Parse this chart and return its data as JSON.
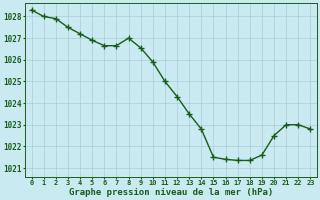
{
  "x": [
    0,
    1,
    2,
    3,
    4,
    5,
    6,
    7,
    8,
    9,
    10,
    11,
    12,
    13,
    14,
    15,
    16,
    17,
    18,
    19,
    20,
    21,
    22,
    23
  ],
  "y": [
    1028.3,
    1028.0,
    1027.9,
    1027.5,
    1027.2,
    1026.9,
    1026.65,
    1026.65,
    1027.0,
    1026.55,
    1025.9,
    1025.0,
    1024.3,
    1023.5,
    1022.8,
    1021.5,
    1021.4,
    1021.35,
    1021.35,
    1021.6,
    1022.5,
    1023.0,
    1023.0,
    1022.8
  ],
  "line_color": "#1a5c1a",
  "marker": "+",
  "marker_size": 4,
  "marker_linewidth": 1.0,
  "bg_color": "#c8eaf0",
  "grid_color": "#aaccd8",
  "xlabel": "Graphe pression niveau de la mer (hPa)",
  "xlabel_color": "#1a5c1a",
  "tick_color": "#1a5c1a",
  "ylim": [
    1020.6,
    1028.6
  ],
  "xlim": [
    -0.5,
    23.5
  ],
  "yticks": [
    1021,
    1022,
    1023,
    1024,
    1025,
    1026,
    1027,
    1028
  ],
  "xticks": [
    0,
    1,
    2,
    3,
    4,
    5,
    6,
    7,
    8,
    9,
    10,
    11,
    12,
    13,
    14,
    15,
    16,
    17,
    18,
    19,
    20,
    21,
    22,
    23
  ],
  "xtick_labels": [
    "0",
    "1",
    "2",
    "3",
    "4",
    "5",
    "6",
    "7",
    "8",
    "9",
    "10",
    "11",
    "12",
    "13",
    "14",
    "15",
    "16",
    "17",
    "18",
    "19",
    "20",
    "21",
    "22",
    "23"
  ],
  "xtick_fontsize": 5.0,
  "ytick_fontsize": 5.5,
  "xlabel_fontsize": 6.5,
  "linewidth": 1.0
}
